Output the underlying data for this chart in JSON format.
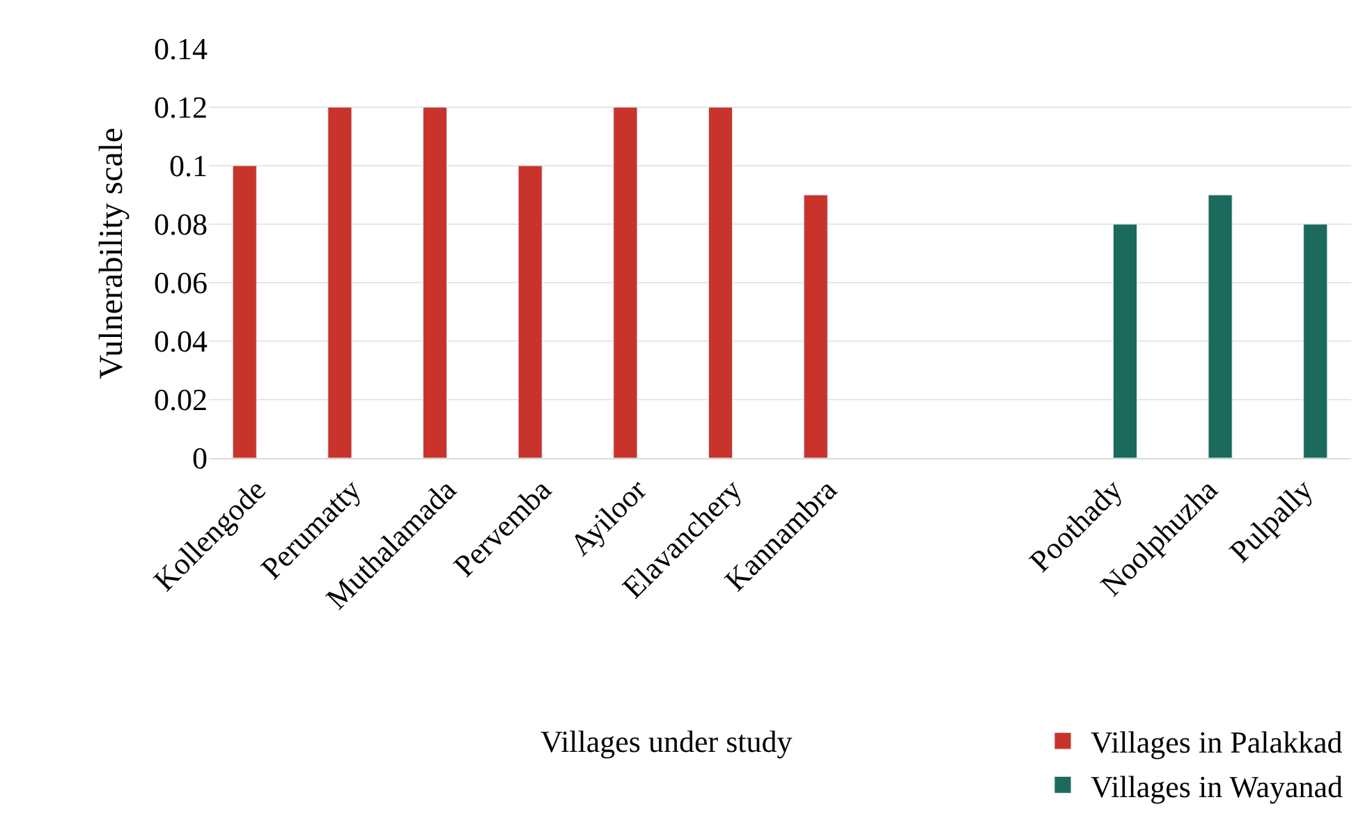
{
  "chart_data": {
    "type": "bar",
    "xlabel": "Villages under study",
    "ylabel": "Vulnerability scale",
    "categories": [
      "Kollengode",
      "Perumatty",
      "Muthalamada",
      "Pervemba",
      "Ayiloor",
      "Elavanchery",
      "Kannambra",
      null,
      null,
      "Poothady",
      "Noolphuzha",
      "Pulpally"
    ],
    "series": [
      {
        "name": "Villages in Palakkad",
        "color": "#c8342b",
        "values": [
          0.1,
          0.12,
          0.12,
          0.1,
          0.12,
          0.12,
          0.09,
          null,
          null,
          null,
          null,
          null
        ]
      },
      {
        "name": "Villages in Wayanad",
        "color": "#1b6a5b",
        "values": [
          null,
          null,
          null,
          null,
          null,
          null,
          null,
          null,
          null,
          0.08,
          0.09,
          0.08
        ]
      }
    ],
    "ylim": [
      0,
      0.14
    ],
    "yticks": [
      0,
      0.02,
      0.04,
      0.06,
      0.08,
      0.1,
      0.12,
      0.14
    ],
    "grid": "y",
    "legend": "bottom right"
  }
}
